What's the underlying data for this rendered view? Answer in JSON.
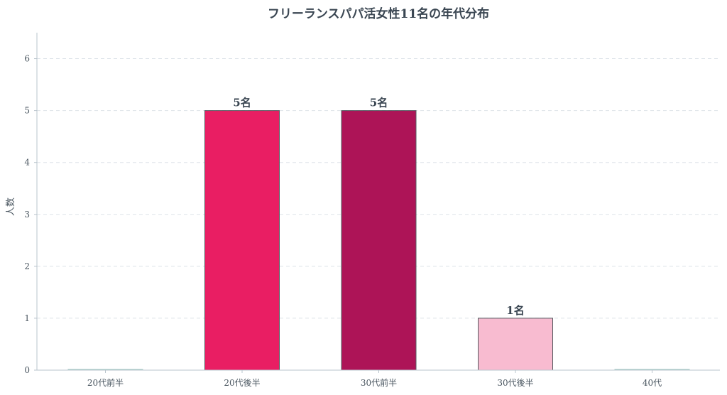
{
  "chart_data": {
    "type": "bar",
    "title": "フリーランスパパ活女性11名の年代分布",
    "xlabel": "",
    "ylabel": "人数",
    "categories": [
      "20代前半",
      "20代後半",
      "30代前半",
      "30代後半",
      "40代"
    ],
    "values": [
      0,
      5,
      5,
      1,
      0
    ],
    "data_labels": [
      "",
      "5名",
      "5名",
      "1名",
      ""
    ],
    "bar_colors": [
      "#f4a9c0",
      "#e91e63",
      "#ad1457",
      "#f8bbd0",
      "#f4a9c0"
    ],
    "ylim": [
      0,
      6.5
    ],
    "yticks": [
      0,
      1,
      2,
      3,
      4,
      5,
      6
    ],
    "grid": true,
    "grid_axis": "y",
    "legend": "none"
  }
}
